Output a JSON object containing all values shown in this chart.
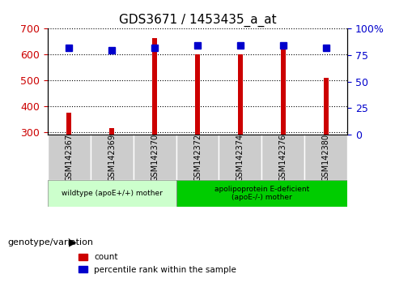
{
  "title": "GDS3671 / 1453435_a_at",
  "samples": [
    "GSM142367",
    "GSM142369",
    "GSM142370",
    "GSM142372",
    "GSM142374",
    "GSM142376",
    "GSM142380"
  ],
  "counts": [
    375,
    315,
    665,
    600,
    600,
    625,
    510
  ],
  "percentiles": [
    82,
    80,
    82,
    84,
    84,
    84,
    82
  ],
  "ylim_left": [
    290,
    700
  ],
  "ylim_right": [
    0,
    100
  ],
  "bar_color": "#cc0000",
  "dot_color": "#0000cc",
  "grid_color": "#000000",
  "background_color": "#ffffff",
  "tick_color_left": "#cc0000",
  "tick_color_right": "#0000cc",
  "yticks_left": [
    300,
    400,
    500,
    600,
    700
  ],
  "yticks_right": [
    0,
    25,
    50,
    75,
    100
  ],
  "group1_label": "wildtype (apoE+/+) mother",
  "group2_label": "apolipoprotein E-deficient\n(apoE-/-) mother",
  "group1_indices": [
    0,
    1,
    2
  ],
  "group2_indices": [
    3,
    4,
    5,
    6
  ],
  "group_bg1": "#ccffcc",
  "group_bg2": "#00cc00",
  "sample_box_bg": "#cccccc",
  "xlabel_bottom": "genotype/variation",
  "legend_count": "count",
  "legend_pct": "percentile rank within the sample",
  "bar_width": 0.12,
  "base_value": 290,
  "dot_size": 6
}
